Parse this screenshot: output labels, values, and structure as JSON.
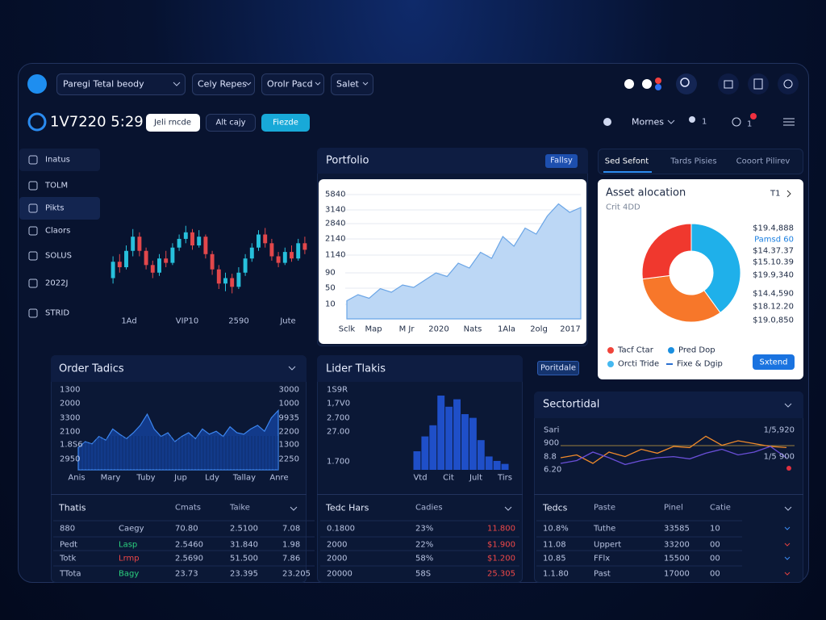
{
  "header": {
    "menus": [
      "Paregi Tetal beody",
      "Cely Repes",
      "Orolr Pacd",
      "Salet"
    ]
  },
  "toolbar": {
    "time": "1V7220 5:29",
    "buttons": [
      "Jeli rncde",
      "Alt cajy",
      "Fiezde"
    ],
    "view": "Mornes",
    "user_count": "1",
    "alerts": "1"
  },
  "sidebar": [
    "Inatus",
    "TOLM",
    "Pikts",
    "Claors",
    "SOLUS",
    "2022J",
    "STRID"
  ],
  "price_chart": {
    "x_labels": [
      "1Ad",
      "VIP10",
      "2590",
      "Jute"
    ],
    "candles": [
      [
        30,
        45,
        50,
        25
      ],
      [
        45,
        40,
        52,
        35
      ],
      [
        40,
        55,
        60,
        38
      ],
      [
        55,
        68,
        75,
        50
      ],
      [
        68,
        55,
        72,
        50
      ],
      [
        55,
        42,
        58,
        38
      ],
      [
        42,
        35,
        46,
        30
      ],
      [
        35,
        48,
        52,
        32
      ],
      [
        48,
        44,
        55,
        40
      ],
      [
        44,
        58,
        62,
        42
      ],
      [
        58,
        66,
        70,
        55
      ],
      [
        66,
        72,
        78,
        62
      ],
      [
        72,
        60,
        75,
        56
      ],
      [
        60,
        68,
        74,
        58
      ],
      [
        68,
        52,
        70,
        48
      ],
      [
        52,
        38,
        55,
        33
      ],
      [
        38,
        25,
        42,
        20
      ],
      [
        25,
        30,
        35,
        18
      ],
      [
        30,
        22,
        34,
        16
      ],
      [
        22,
        35,
        40,
        20
      ],
      [
        35,
        48,
        52,
        32
      ],
      [
        48,
        58,
        62,
        45
      ],
      [
        58,
        70,
        74,
        55
      ],
      [
        70,
        62,
        76,
        58
      ],
      [
        62,
        50,
        66,
        46
      ],
      [
        50,
        44,
        54,
        40
      ],
      [
        44,
        54,
        58,
        42
      ],
      [
        54,
        48,
        60,
        45
      ],
      [
        48,
        62,
        66,
        46
      ],
      [
        62,
        56,
        68,
        52
      ]
    ]
  },
  "portfolio": {
    "title": "Portfolio",
    "button": "Fallsy",
    "y_labels": [
      "5840",
      "3140",
      "2840",
      "2140",
      "1140",
      "90",
      "50",
      "10"
    ],
    "x_labels": [
      "Sclk",
      "Map",
      "M Jr",
      "2020",
      "Nats",
      "1Ala",
      "2olg",
      "2017"
    ],
    "values": [
      15,
      20,
      17,
      25,
      22,
      28,
      26,
      32,
      38,
      35,
      46,
      42,
      55,
      50,
      68,
      60,
      75,
      70,
      85,
      95,
      88,
      92
    ]
  },
  "allocation": {
    "tabs": [
      "Sed Sefont",
      "Tards Pisies",
      "Cooort Pilirev"
    ],
    "title": "Asset alocation",
    "subtitle": "Crit 4DD",
    "period": "T1",
    "slices": [
      {
        "value": 40,
        "color": "#1fb0ea"
      },
      {
        "value": 33,
        "color": "#f7772a"
      },
      {
        "value": 27,
        "color": "#f0382e"
      }
    ],
    "amounts": [
      "$19.4,888",
      "Pamsd 60",
      "$14.37.37",
      "$15.10.39",
      "$19.9,340",
      "$14.4,590",
      "$18.12.20",
      "$19.0,850"
    ],
    "legend": [
      {
        "name": "Tacf Ctar",
        "color": "#f0443a"
      },
      {
        "name": "Pred Dop",
        "color": "#1a8fe0"
      },
      {
        "name": "Orcti Tride",
        "color": "#45b8f0"
      },
      {
        "name": "Fixe & Dgip",
        "color": "#2a6fd0"
      }
    ],
    "button": "Sxtend"
  },
  "order_panel": {
    "title": "Order Tadics",
    "left_labels": [
      "1300",
      "2000",
      "3300",
      "2100",
      "1.8S6",
      "2950"
    ],
    "right_labels": [
      "3000",
      "1000",
      "9935",
      "2200",
      "1300",
      "2250"
    ],
    "x_labels": [
      "Anis",
      "Mary",
      "Tuby",
      "Jup",
      "Ldy",
      "Tallay",
      "Anre"
    ],
    "values": [
      30,
      38,
      35,
      45,
      40,
      55,
      48,
      42,
      50,
      60,
      75,
      55,
      45,
      50,
      38,
      45,
      50,
      42,
      55,
      48,
      52,
      45,
      58,
      50,
      48,
      55,
      60,
      52,
      70,
      80
    ],
    "table": {
      "header": [
        "Thatis",
        "Cmats",
        "Taike"
      ],
      "rows": [
        [
          "880",
          "Caegy",
          "70.80",
          "2.5100",
          "7.08"
        ],
        [
          "Pedt",
          "Lasp",
          "2.5460",
          "31.840",
          "1.98"
        ],
        [
          "Totk",
          "Lrmp",
          "2.5690",
          "51.500",
          "7.86"
        ],
        [
          "TTota",
          "Bagy",
          "23.73",
          "23.395",
          "23.205"
        ]
      ]
    }
  },
  "lider_panel": {
    "title": "Lider Tlakis",
    "button": "Poritdale",
    "y_labels": [
      "1S9R",
      "1,7V0",
      "2.700",
      "27.00",
      "1.700"
    ],
    "x_labels": [
      "Vtd",
      "Cit",
      "Jult",
      "Tirs"
    ],
    "values": [
      25,
      45,
      60,
      100,
      85,
      95,
      75,
      70,
      40,
      18,
      12,
      8
    ],
    "table": {
      "header": [
        "Tedc Hars",
        "Cadies"
      ],
      "rows": [
        [
          "0.1800",
          "23%",
          "11.800"
        ],
        [
          "2000",
          "22%",
          "$1.900"
        ],
        [
          "2000",
          "58%",
          "$1.200"
        ],
        [
          "20000",
          "58S",
          "25.305"
        ]
      ]
    }
  },
  "sector_panel": {
    "title": "Sectortidal",
    "left_labels": [
      "Sari",
      "900",
      "8.8",
      "6.20"
    ],
    "right_labels": [
      "1/5,920",
      "1/5 900"
    ],
    "series": [
      {
        "color": "#f08a2a",
        "values": [
          40,
          45,
          30,
          50,
          42,
          55,
          48,
          60,
          58,
          78,
          62,
          70,
          65,
          60,
          58
        ]
      },
      {
        "color": "#6a4fd8",
        "values": [
          30,
          35,
          50,
          40,
          28,
          35,
          40,
          42,
          38,
          48,
          55,
          45,
          50,
          60,
          40
        ]
      }
    ],
    "table": {
      "header": [
        "Tedcs",
        "Paste",
        "Pinel",
        "Catie"
      ],
      "rows": [
        [
          "10.8%",
          "Tuthe",
          "33585",
          "10"
        ],
        [
          "11.08",
          "Uppert",
          "33200",
          "00"
        ],
        [
          "10.85",
          "FFlx",
          "15500",
          "00"
        ],
        [
          "1.1.80",
          "Past",
          "17000",
          "00"
        ]
      ]
    }
  }
}
